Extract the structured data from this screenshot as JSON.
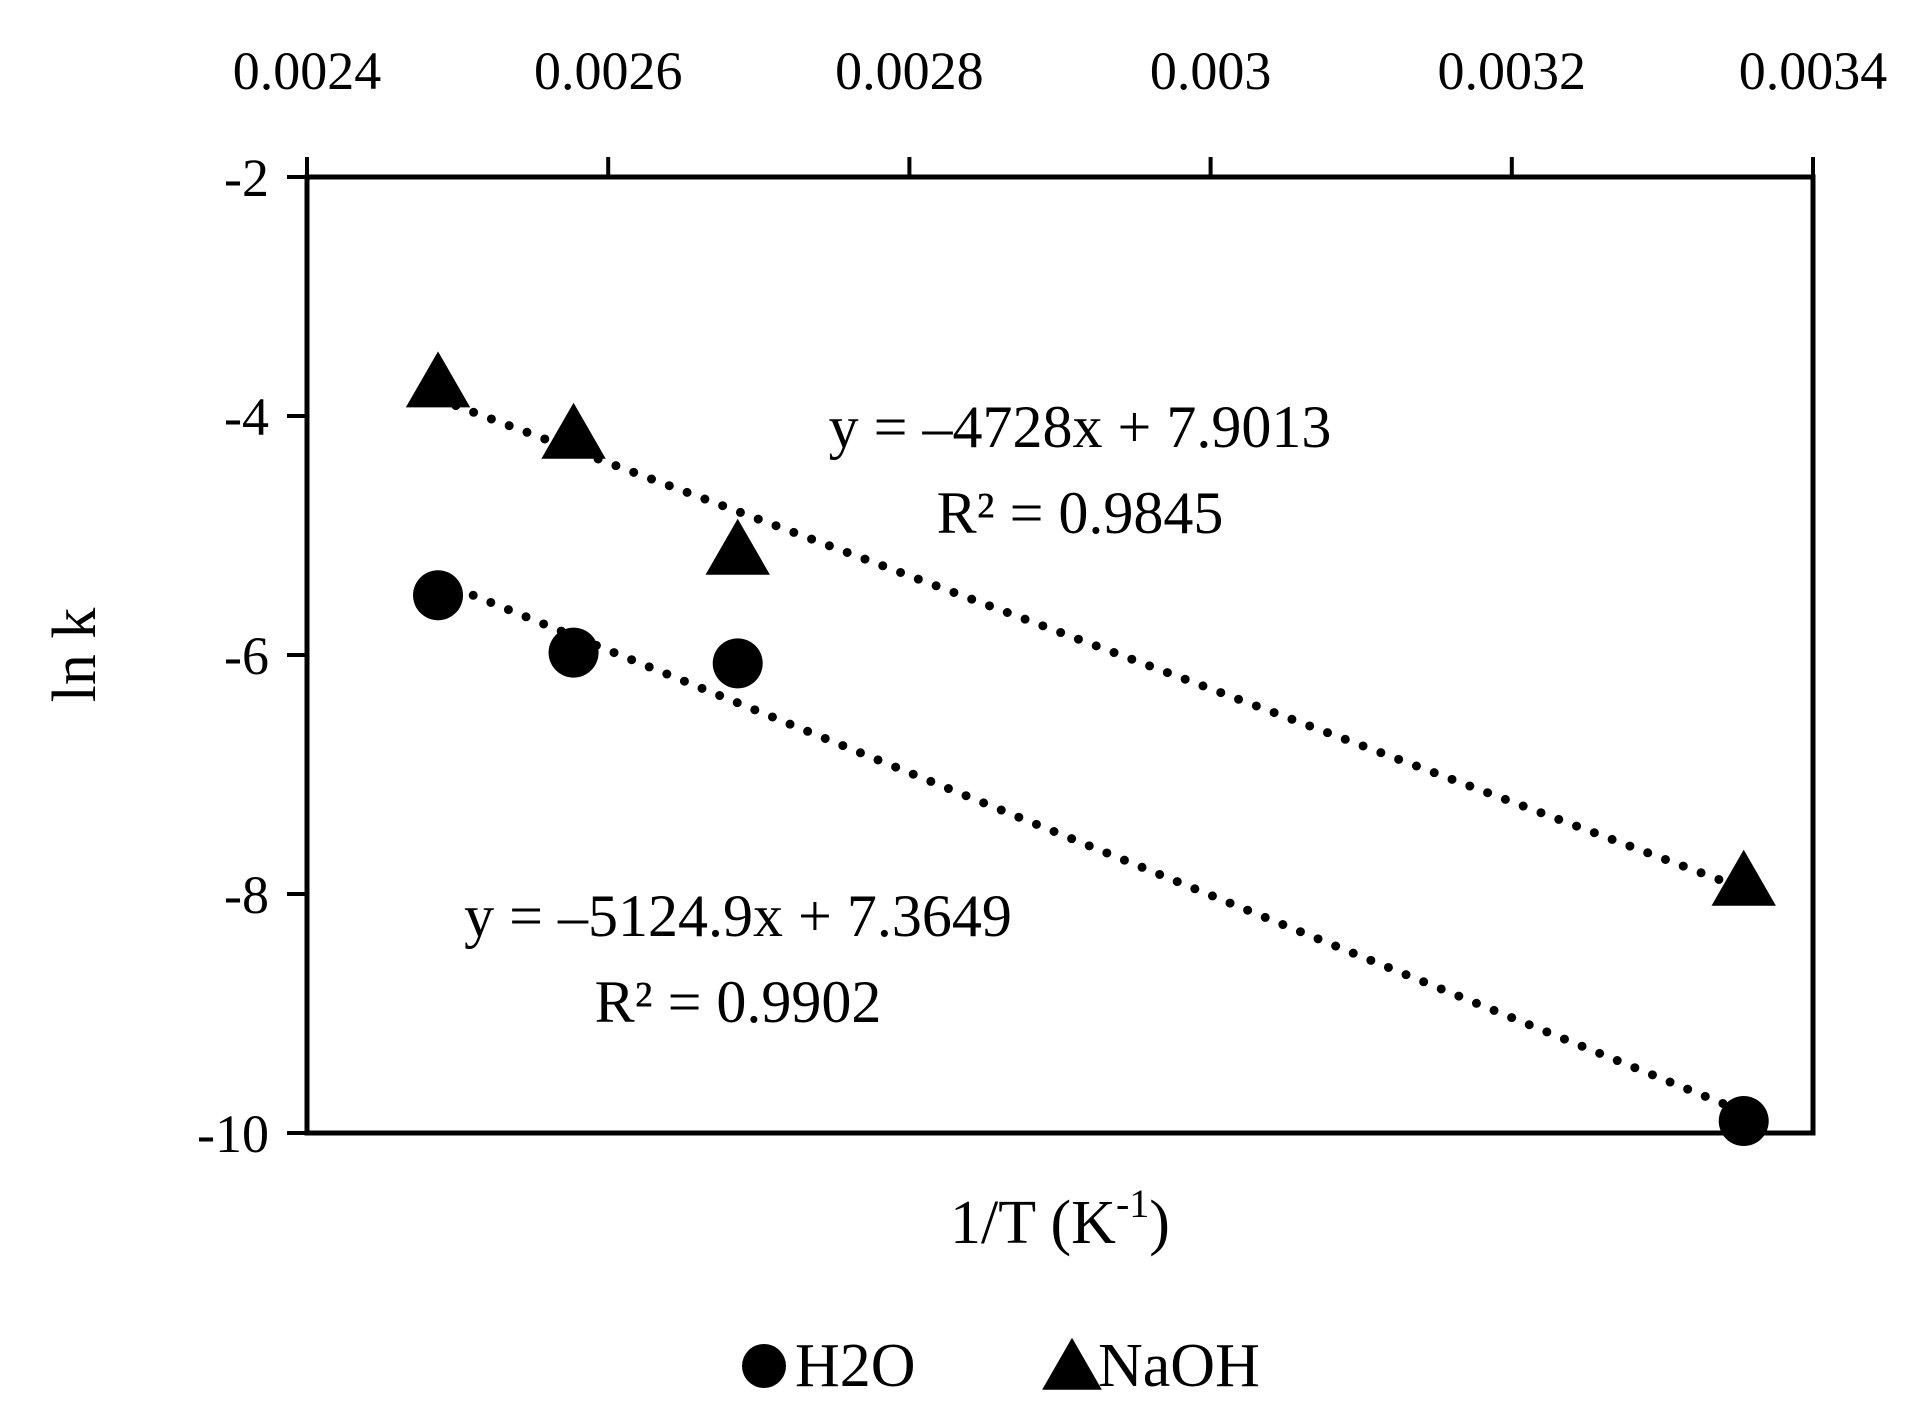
{
  "chart_data": {
    "type": "scatter",
    "xlabel": "1/T (K",
    "xlabel_sup": "-1",
    "xlabel_close": ")",
    "ylabel": "ln k",
    "xlim": [
      0.0024,
      0.0034
    ],
    "ylim": [
      -10,
      -2
    ],
    "x_ticks": [
      0.0024,
      0.0026,
      0.0028,
      0.003,
      0.0032,
      0.0034
    ],
    "x_tick_labels": [
      "0.0024",
      "0.0026",
      "0.0028",
      "0.003",
      "0.0032",
      "0.0034"
    ],
    "y_ticks": [
      -2,
      -4,
      -6,
      -8,
      -10
    ],
    "y_tick_labels": [
      "-2",
      "-4",
      "-6",
      "-8",
      "-10"
    ],
    "x_axis_position": "top",
    "grid": false,
    "legend_position": "bottom",
    "series": [
      {
        "name": "H2O",
        "marker": "circle",
        "color": "#000000",
        "x": [
          0.002487,
          0.002577,
          0.002686,
          0.003354
        ],
        "y": [
          -5.5,
          -5.98,
          -6.07,
          -9.9
        ],
        "trendline": {
          "type": "linear",
          "slope": -5124.9,
          "intercept": 7.3649,
          "style": "dotted"
        },
        "equation": "y = –5124.9x + 7.3649",
        "r2": "R² = 0.9902"
      },
      {
        "name": "NaOH",
        "marker": "triangle",
        "color": "#000000",
        "x": [
          0.002487,
          0.002577,
          0.002686,
          0.003354
        ],
        "y": [
          -3.75,
          -4.18,
          -5.15,
          -7.92
        ],
        "trendline": {
          "type": "linear",
          "slope": -4728,
          "intercept": 7.9013,
          "style": "dotted"
        },
        "equation": "y = –4728x + 7.9013",
        "r2": "R² = 0.9845"
      }
    ]
  }
}
